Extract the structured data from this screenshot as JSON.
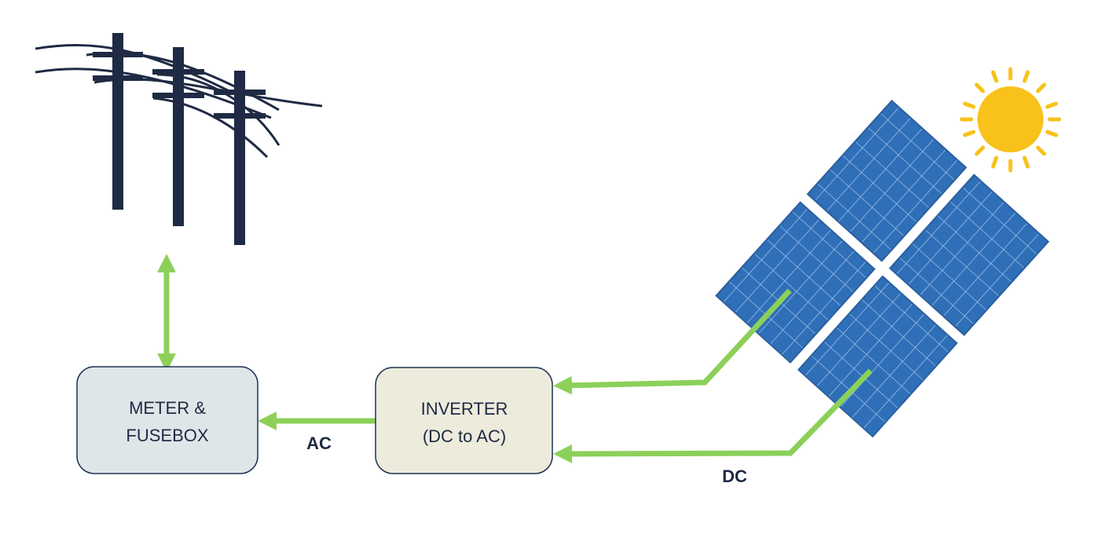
{
  "nodes": {
    "meter": {
      "line1": "METER &",
      "line2": "FUSEBOX"
    },
    "inverter": {
      "line1": "INVERTER",
      "line2": "(DC to AC)"
    }
  },
  "flows": {
    "ac_label": "AC",
    "dc_label": "DC"
  },
  "icons": {
    "grid": "power-line-poles-icon",
    "solar": "solar-panel-icon",
    "sun": "sun-icon"
  },
  "colors": {
    "arrow": "#8cd05a",
    "pole": "#1f2a44",
    "meter_fill": "#dfe6e8",
    "inverter_fill": "#ecebdc",
    "panel": "#2e6db4",
    "sun": "#f8c21a"
  }
}
